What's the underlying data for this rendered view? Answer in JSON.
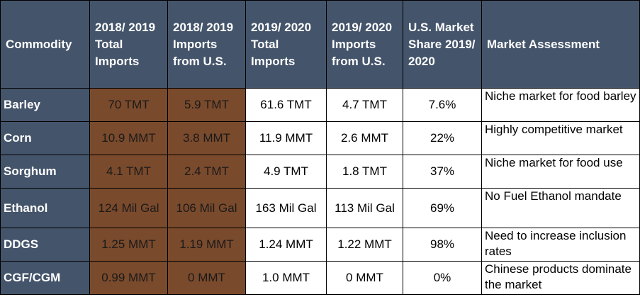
{
  "headers": {
    "commodity": "Commodity",
    "imports_total_1819": "2018/ 2019 Total Imports",
    "imports_us_1819": "2018/ 2019 Imports from U.S.",
    "imports_total_1920": "2019/ 2020 Total Imports",
    "imports_us_1920": "2019/ 2020 Imports from U.S.",
    "market_share": "U.S. Market Share 2019/ 2020",
    "assessment": "Market Assessment"
  },
  "rows": [
    {
      "commodity": "Barley",
      "total_1819": "70 TMT",
      "us_1819": "5.9 TMT",
      "total_1920": "61.6 TMT",
      "us_1920": "4.7 TMT",
      "share": "7.6%",
      "assessment": "Niche market for food barley"
    },
    {
      "commodity": "Corn",
      "total_1819": "10.9 MMT",
      "us_1819": "3.8 MMT",
      "total_1920": "11.9 MMT",
      "us_1920": "2.6 MMT",
      "share": "22%",
      "assessment": "Highly competitive market"
    },
    {
      "commodity": "Sorghum",
      "total_1819": "4.1 TMT",
      "us_1819": "2.4 TMT",
      "total_1920": "4.9 TMT",
      "us_1920": "1.8 TMT",
      "share": "37%",
      "assessment": "Niche market for food use"
    },
    {
      "commodity": "Ethanol",
      "total_1819": "124 Mil Gal",
      "us_1819": "106 Mil Gal",
      "total_1920": "163 Mil Gal",
      "us_1920": "113 Mil Gal",
      "share": "69%",
      "assessment": "No Fuel Ethanol mandate"
    },
    {
      "commodity": "DDGS",
      "total_1819": "1.25 MMT",
      "us_1819": "1.19 MMT",
      "total_1920": "1.24 MMT",
      "us_1920": "1.22 MMT",
      "share": "98%",
      "assessment": "Need to increase inclusion rates"
    },
    {
      "commodity": "CGF/CGM",
      "total_1819": "0.99 MMT",
      "us_1819": "0 MMT",
      "total_1920": "1.0 MMT",
      "us_1920": "0 MMT",
      "share": "0%",
      "assessment": "Chinese products dominate the market"
    }
  ],
  "colors": {
    "header_bg": "#44546a",
    "highlight_bg": "#7a4a2c",
    "border": "#000000"
  }
}
